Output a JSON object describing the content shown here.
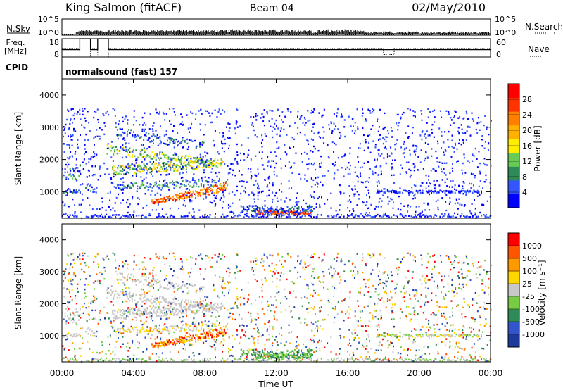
{
  "header": {
    "station": "King Salmon (fitACF)",
    "beam": "Beam 04",
    "date": "02/May/2010"
  },
  "labels": {
    "nsky": "N.Sky",
    "nsearch": "N.Search",
    "freq_line1": "Freq.",
    "freq_line2": "[MHz]",
    "nave": "Nave",
    "cpid": "CPID",
    "cpid_value": "normalsound (fast) 157"
  },
  "colors": {
    "power_scale": [
      "#0000ff",
      "#3355ff",
      "#2e8b57",
      "#66cc55",
      "#ffee00",
      "#ffb000",
      "#ff7f00",
      "#ff3300",
      "#ff0000"
    ],
    "velocity_scale": [
      "#1e3a9b",
      "#3355cc",
      "#2e8b57",
      "#77cc44",
      "#c8c8c8",
      "#ffd700",
      "#ff9900",
      "#ff5500",
      "#ff0000"
    ]
  },
  "chart_data": [
    {
      "type": "line",
      "name": "nsky-nsearch",
      "yticks_left": [
        "10^5",
        "10^0"
      ],
      "yticks_right": [
        "10^5",
        "10^0"
      ]
    },
    {
      "type": "line",
      "name": "freq-nave",
      "yticks_left": [
        "18",
        "8"
      ],
      "yticks_right": [
        "60",
        "0"
      ],
      "freq_steps": [
        {
          "t0": 0.0,
          "t1": 1.0,
          "f": 12
        },
        {
          "t0": 1.0,
          "t1": 1.6,
          "f": 18
        },
        {
          "t0": 1.6,
          "t1": 2.0,
          "f": 12
        },
        {
          "t0": 2.0,
          "t1": 2.6,
          "f": 18
        },
        {
          "t0": 2.6,
          "t1": 24.0,
          "f": 12
        }
      ],
      "nave_steps": [
        {
          "t0": 0.0,
          "t1": 1.0,
          "n": 28
        },
        {
          "t0": 1.0,
          "t1": 1.6,
          "n": 0
        },
        {
          "t0": 1.6,
          "t1": 2.0,
          "n": 28
        },
        {
          "t0": 2.0,
          "t1": 2.6,
          "n": 0
        },
        {
          "t0": 2.6,
          "t1": 10.0,
          "n": 28
        },
        {
          "t0": 10.0,
          "t1": 18.0,
          "n": 28
        },
        {
          "t0": 18.0,
          "t1": 18.6,
          "n": 8
        },
        {
          "t0": 18.6,
          "t1": 24.0,
          "n": 28
        }
      ]
    },
    {
      "type": "heatmap",
      "name": "power",
      "ylabel": "Slant Range [km]",
      "ylim": [
        180,
        4500
      ],
      "yticks": [
        1000,
        2000,
        3000,
        4000
      ],
      "colorbar_label": "Power [dB]",
      "colorbar_ticks": [
        4,
        8,
        12,
        16,
        20,
        24,
        28
      ],
      "colorbar_range": [
        0,
        32
      ]
    },
    {
      "type": "heatmap",
      "name": "velocity",
      "ylabel": "Slant Range [km]",
      "ylim": [
        180,
        4500
      ],
      "yticks": [
        1000,
        2000,
        3000,
        4000
      ],
      "xlabel": "Time UT",
      "xticks": [
        "00:00",
        "04:00",
        "08:00",
        "12:00",
        "16:00",
        "20:00",
        "00:00"
      ],
      "xlim": [
        0,
        24
      ],
      "colorbar_label": "Velocity [m s⁻¹]",
      "colorbar_ticks": [
        "1000",
        "500",
        "100",
        "25",
        "-25",
        "-100",
        "-500",
        "-1000"
      ]
    }
  ]
}
